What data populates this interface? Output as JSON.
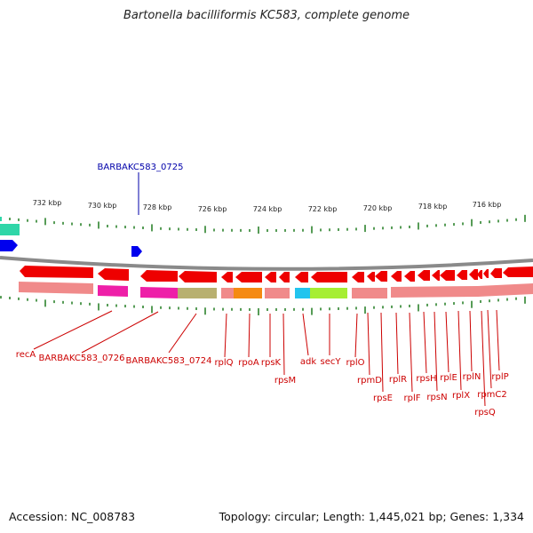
{
  "title": "Bartonella bacilliformis KC583, complete genome",
  "accession_text": "Accession: NC_008783",
  "topology_text": "Topology: circular; Length: 1,445,021 bp; Genes: 1,334",
  "ticks": [
    "732 kbp",
    "730 kbp",
    "728 kbp",
    "726 kbp",
    "724 kbp",
    "722 kbp",
    "720 kbp",
    "718 kbp",
    "716 kbp"
  ],
  "top_label": "BARBAKC583_0725",
  "gene_labels": [
    "recA",
    "BARBAKC583_0726",
    "BARBAKC583_0724",
    "rplQ",
    "rpoA",
    "rpsK",
    "rpsM",
    "adk",
    "secY",
    "rplO",
    "rpmD",
    "rpsE",
    "rplR",
    "rplF",
    "rpsH",
    "rpsN",
    "rplE",
    "rplX",
    "rplN",
    "rpmC2",
    "rpsQ",
    "rplP"
  ],
  "colors": {
    "forward_gene": "#0000ee",
    "reverse_gene": "#ee0000",
    "forward_label": "#0000aa",
    "reverse_label": "#cc0000",
    "backbone": "#8a8a8a",
    "tick": "#1f7a1f",
    "teal_feature": "#2fd6a8"
  }
}
